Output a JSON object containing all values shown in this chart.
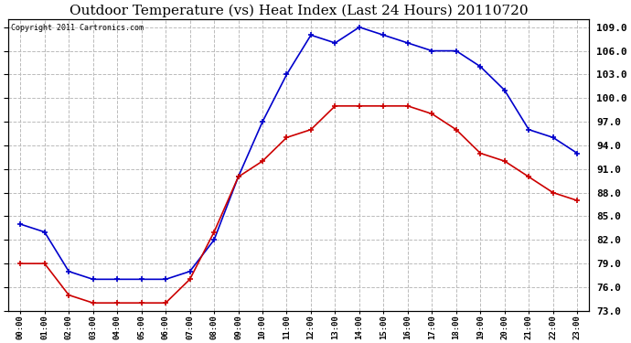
{
  "title": "Outdoor Temperature (vs) Heat Index (Last 24 Hours) 20110720",
  "copyright": "Copyright 2011 Cartronics.com",
  "x_labels": [
    "00:00",
    "01:00",
    "02:00",
    "03:00",
    "04:00",
    "05:00",
    "06:00",
    "07:00",
    "08:00",
    "09:00",
    "10:00",
    "11:00",
    "12:00",
    "13:00",
    "14:00",
    "15:00",
    "16:00",
    "17:00",
    "18:00",
    "19:00",
    "20:00",
    "21:00",
    "22:00",
    "23:00"
  ],
  "blue_data": [
    84,
    83,
    78,
    77,
    77,
    77,
    77,
    78,
    82,
    90,
    97,
    103,
    108,
    107,
    109,
    108,
    107,
    106,
    106,
    104,
    101,
    96,
    95,
    93
  ],
  "red_data": [
    79,
    79,
    75,
    74,
    74,
    74,
    74,
    77,
    83,
    90,
    92,
    95,
    96,
    99,
    99,
    99,
    99,
    98,
    96,
    93,
    92,
    90,
    88,
    87
  ],
  "ylim": [
    73.0,
    110.0
  ],
  "yticks": [
    73.0,
    76.0,
    79.0,
    82.0,
    85.0,
    88.0,
    91.0,
    94.0,
    97.0,
    100.0,
    103.0,
    106.0,
    109.0
  ],
  "blue_color": "#0000cc",
  "red_color": "#cc0000",
  "grid_color": "#bbbbbb",
  "bg_color": "#ffffff",
  "title_fontsize": 11,
  "copyright_fontsize": 6,
  "ytick_fontsize": 8,
  "xtick_fontsize": 6.5
}
